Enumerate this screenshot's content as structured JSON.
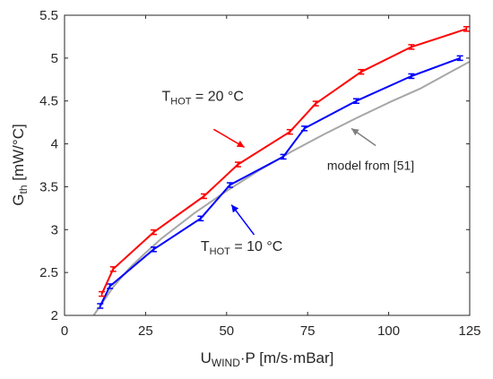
{
  "chart_data": {
    "type": "line",
    "title": "",
    "xlabel": {
      "main": "U",
      "sub": "WIND",
      "rest": "·P [m/s·mBar]"
    },
    "ylabel": {
      "main": "G",
      "sub": "th",
      "rest": " [mW/°C]"
    },
    "xlim": [
      0,
      125
    ],
    "ylim": [
      2,
      5.5
    ],
    "xticks": [
      0,
      25,
      50,
      75,
      100,
      125
    ],
    "yticks": [
      2,
      2.5,
      3,
      3.5,
      4,
      4.5,
      5,
      5.5
    ],
    "xtick_labels": [
      "0",
      "25",
      "50",
      "75",
      "100",
      "125"
    ],
    "ytick_labels": [
      "2",
      "2.5",
      "3",
      "3.5",
      "4",
      "4.5",
      "5",
      "5.5"
    ],
    "grid": false,
    "series": [
      {
        "color": "#ff0000",
        "errorbars": true,
        "x": [
          11.5,
          15,
          27.5,
          43,
          53.5,
          69.5,
          77.5,
          91.5,
          107,
          124
        ],
        "y": [
          2.25,
          2.54,
          2.97,
          3.39,
          3.76,
          4.14,
          4.47,
          4.84,
          5.13,
          5.34
        ]
      },
      {
        "color": "#0000ff",
        "errorbars": true,
        "x": [
          11,
          14,
          27.5,
          42,
          51,
          67.5,
          74,
          90,
          107,
          122
        ],
        "y": [
          2.11,
          2.34,
          2.77,
          3.13,
          3.52,
          3.85,
          4.18,
          4.5,
          4.79,
          5.0
        ]
      },
      {
        "color": "#a6a6a6",
        "errorbars": false,
        "x": [
          9,
          15,
          20,
          25,
          30,
          40,
          50,
          60,
          70,
          80,
          90,
          100,
          110,
          125
        ],
        "y": [
          2.0,
          2.33,
          2.55,
          2.73,
          2.9,
          3.19,
          3.45,
          3.69,
          3.91,
          4.11,
          4.3,
          4.48,
          4.65,
          4.96
        ]
      }
    ],
    "annotations": [
      {
        "name": "annotation-thot-20",
        "main": "T",
        "sub": "HOT",
        "rest": " = 20 °C",
        "color": "#ff0000",
        "x": 30,
        "y": 4.5,
        "arrow_to": [
          55.5,
          3.96
        ],
        "arrow_from": [
          46,
          4.17
        ]
      },
      {
        "name": "annotation-thot-10",
        "main": "T",
        "sub": "HOT",
        "rest": " = 10 °C",
        "color": "#0000ff",
        "x": 42,
        "y": 2.75,
        "arrow_to": [
          51.5,
          3.29
        ],
        "arrow_from": [
          58.5,
          2.94
        ]
      },
      {
        "name": "annotation-model",
        "text": "model from [51]",
        "color": "#808080",
        "x": 81,
        "y": 3.7,
        "arrow_to": [
          88.5,
          4.18
        ],
        "arrow_from": [
          96,
          3.98
        ]
      }
    ]
  }
}
